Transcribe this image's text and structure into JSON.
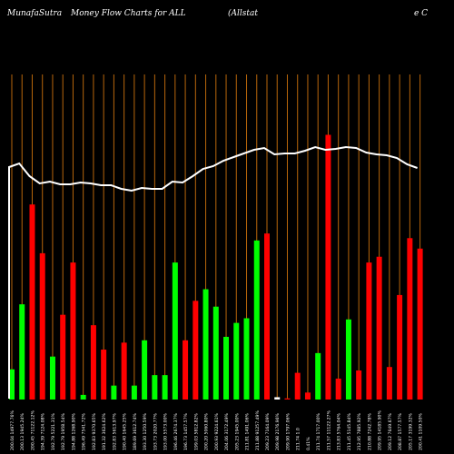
{
  "header": {
    "site": "MunafaSutra",
    "title": "Money Flow  Charts for ALL",
    "company_fragment": "(Allstat",
    "tail_fragment": "e   C"
  },
  "colors": {
    "background": "#000000",
    "grid": "#b8660b",
    "up": "#00ff00",
    "down": "#ff0000",
    "neutral": "#ffffff",
    "price_line": "#ffffff",
    "label": "#ffffff"
  },
  "chart_data": {
    "type": "bar",
    "title": "MunafaSutra  Money Flow  Charts for ALL",
    "bars": [
      {
        "label": "200.04 14977.76%",
        "value": 26,
        "color": "up"
      },
      {
        "label": "200.13 1945.24%",
        "value": 82,
        "color": "up"
      },
      {
        "label": "200.45 71122.12%",
        "value": 168,
        "color": "down"
      },
      {
        "label": "194.39 7124.08%",
        "value": 126,
        "color": "down"
      },
      {
        "label": "192.79 5221.31%",
        "value": 37,
        "color": "up"
      },
      {
        "label": "192.79 1958.54%",
        "value": 73,
        "color": "down"
      },
      {
        "label": "194.88 1268.90%",
        "value": 118,
        "color": "down"
      },
      {
        "label": "196.49 7541.72%",
        "value": 4,
        "color": "up"
      },
      {
        "label": "192.83 9370.65%",
        "value": 64,
        "color": "down"
      },
      {
        "label": "191.32 3624.62%",
        "value": 43,
        "color": "down"
      },
      {
        "label": "192.83 5613.97%",
        "value": 12,
        "color": "up"
      },
      {
        "label": "190.40 1645.25%",
        "value": 49,
        "color": "down"
      },
      {
        "label": "189.69 3612.74%",
        "value": 12,
        "color": "up"
      },
      {
        "label": "193.30 1250.59%",
        "value": 51,
        "color": "up"
      },
      {
        "label": "193.73 2020.77%",
        "value": 21,
        "color": "up"
      },
      {
        "label": "193.00 5573.00%",
        "value": 21,
        "color": "up"
      },
      {
        "label": "196.46 2674.37%",
        "value": 118,
        "color": "up"
      },
      {
        "label": "196.73 1457.57%",
        "value": 51,
        "color": "down"
      },
      {
        "label": "199.03 5812.82%",
        "value": 85,
        "color": "down"
      },
      {
        "label": "200.20 5060.80%",
        "value": 95,
        "color": "up"
      },
      {
        "label": "200.93 9224.61%",
        "value": 80,
        "color": "up"
      },
      {
        "label": "204.06 3172.49%",
        "value": 54,
        "color": "up"
      },
      {
        "label": "205.23 1945.00%",
        "value": 66,
        "color": "up"
      },
      {
        "label": "211.81 1491.06%",
        "value": 70,
        "color": "up"
      },
      {
        "label": "211.88 91257.49%",
        "value": 137,
        "color": "up"
      },
      {
        "label": "209.23 7164.09%",
        "value": 143,
        "color": "down"
      },
      {
        "label": "209.98 2176.96%",
        "value": 2,
        "color": "neutral"
      },
      {
        "label": "209.90 1797.06%",
        "value": 1,
        "color": "down"
      },
      {
        "label": "211.74 1.0",
        "value": 23,
        "color": "down"
      },
      {
        "label": "0.41%",
        "value": 6,
        "color": "down"
      },
      {
        "label": "211.74 1717.00%",
        "value": 40,
        "color": "up"
      },
      {
        "label": "211.57 11122.27%",
        "value": 228,
        "color": "down"
      },
      {
        "label": "213.83 5764.04%",
        "value": 18,
        "color": "down"
      },
      {
        "label": "211.45 5145.84%",
        "value": 69,
        "color": "up"
      },
      {
        "label": "212.95 7885.92%",
        "value": 25,
        "color": "down"
      },
      {
        "label": "210.88 7242.78%",
        "value": 118,
        "color": "down"
      },
      {
        "label": "209.95 14185.90%",
        "value": 123,
        "color": "down"
      },
      {
        "label": "209.12 7649.67%",
        "value": 28,
        "color": "down"
      },
      {
        "label": "208.87 1577.57%",
        "value": 90,
        "color": "down"
      },
      {
        "label": "205.17 3199.32%",
        "value": 139,
        "color": "down"
      },
      {
        "label": "200.41 1109.50%",
        "value": 130,
        "color": "down"
      }
    ],
    "price": [
      206,
      210,
      196,
      188,
      190,
      187,
      187,
      189,
      188,
      186,
      186,
      182,
      180,
      183,
      182,
      182,
      190,
      189,
      196,
      204,
      207,
      213,
      217,
      221,
      225,
      227,
      220,
      221,
      221,
      224,
      228,
      225,
      226,
      228,
      227,
      222,
      220,
      219,
      216,
      209,
      205
    ],
    "price_first": 195,
    "volume_scale": [
      0,
      280
    ],
    "price_scale": [
      0,
      230
    ]
  }
}
